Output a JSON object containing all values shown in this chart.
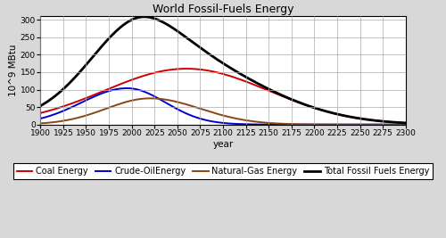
{
  "title": "World Fossil-Fuels Energy",
  "xlabel": "year",
  "ylabel": "10^9 MBtu",
  "xlim": [
    1900,
    2300
  ],
  "ylim": [
    0,
    310
  ],
  "yticks": [
    0,
    50,
    100,
    150,
    200,
    250,
    300
  ],
  "xticks": [
    1900,
    1925,
    1950,
    1975,
    2000,
    2025,
    2050,
    2075,
    2100,
    2125,
    2150,
    2175,
    2200,
    2225,
    2250,
    2275,
    2300
  ],
  "series": {
    "coal": {
      "label": "Coal Energy",
      "color": "#cc0000",
      "peak_year": 2060,
      "peak_value": 160,
      "sigma_l": 90,
      "sigma_r": 90
    },
    "oil": {
      "label": "Crude-OilEnergy",
      "color": "#0000cc",
      "peak_year": 1995,
      "peak_value": 104,
      "sigma_l": 50,
      "sigma_r": 42
    },
    "gas": {
      "label": "Natural-Gas Energy",
      "color": "#8B4513",
      "peak_year": 2020,
      "peak_value": 75,
      "sigma_l": 48,
      "sigma_r": 55
    },
    "total": {
      "label": "Total Fossil Fuels Energy",
      "color": "#000000"
    }
  },
  "plot_bg": "#ffffff",
  "fig_bg": "#d8d8d8",
  "grid_color": "#aaaaaa",
  "legend_fontsize": 7,
  "title_fontsize": 9,
  "axis_label_fontsize": 7.5,
  "tick_fontsize": 6.5
}
